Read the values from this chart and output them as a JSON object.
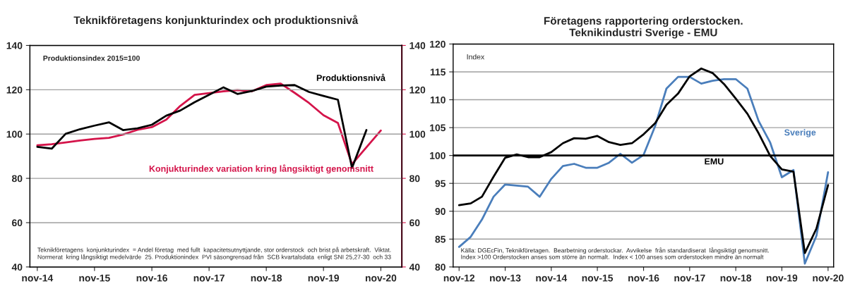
{
  "chart_data": [
    {
      "type": "line",
      "title": "Teknikföretagens konjunkturindex och produktionsnivå",
      "xlim": [
        "2014-09-15",
        "2021-03-15"
      ],
      "xticks": [
        {
          "value": "2014-11",
          "label": "nov-14"
        },
        {
          "value": "2015-11",
          "label": "nov-15"
        },
        {
          "value": "2016-11",
          "label": "nov-16"
        },
        {
          "value": "2017-11",
          "label": "nov-17"
        },
        {
          "value": "2018-11",
          "label": "nov-18"
        },
        {
          "value": "2019-11",
          "label": "nov-19"
        },
        {
          "value": "2020-11",
          "label": "nov-20"
        }
      ],
      "ylim": [
        40,
        140
      ],
      "yticks": [
        40,
        60,
        80,
        100,
        120,
        140
      ],
      "y2lim": [
        40,
        140
      ],
      "y2ticks": [
        40,
        60,
        80,
        100,
        120,
        140
      ],
      "grid": "y",
      "annotations": [
        "Produktionsindex 2015=100",
        "Teknikföretagens  konjunkturindex  = Andel företag  med fullt  kapacitetsutnyttjande, stor orderstock  och brist på arbetskraft.  Viktat.\nNormerat  kring långsiktigt medelvärde  25. Produktionindex  PVI säsongrensad från  SCB kvartalsdata  enligt SNI 25,27-30  och 33"
      ],
      "series": [
        {
          "name": "Produktionsnivå",
          "color": "#000000",
          "x": [
            "2014-11",
            "2015-02",
            "2015-05",
            "2015-08",
            "2015-11",
            "2016-02",
            "2016-05",
            "2016-08",
            "2016-11",
            "2017-02",
            "2017-05",
            "2017-08",
            "2017-11",
            "2018-02",
            "2018-05",
            "2018-08",
            "2018-11",
            "2019-02",
            "2019-05",
            "2019-08",
            "2019-11",
            "2020-02",
            "2020-05",
            "2020-08"
          ],
          "values": [
            94.2,
            93.4,
            100.1,
            102.2,
            103.8,
            105.3,
            101.8,
            102.6,
            104.2,
            108.3,
            110.6,
            114.4,
            117.7,
            121.1,
            118.1,
            119.4,
            121.4,
            121.9,
            122.1,
            119.0,
            117.2,
            115.5,
            84.7,
            101.8
          ]
        },
        {
          "name": "Konjukturindex variation kring långsiktigt genomsnitt",
          "color": "#d4144a",
          "axis": "y2",
          "x": [
            "2014-11",
            "2015-02",
            "2015-05",
            "2015-08",
            "2015-11",
            "2016-02",
            "2016-05",
            "2016-08",
            "2016-11",
            "2017-02",
            "2017-05",
            "2017-08",
            "2017-11",
            "2018-02",
            "2018-05",
            "2018-08",
            "2018-11",
            "2019-02",
            "2019-05",
            "2019-08",
            "2019-11",
            "2020-02",
            "2020-05",
            "2020-11"
          ],
          "values": [
            94.9,
            95.4,
            96.2,
            97.1,
            97.8,
            98.3,
            99.8,
            101.9,
            103.1,
            106.5,
            112.7,
            117.7,
            118.5,
            119.3,
            119.8,
            119.3,
            122.1,
            122.8,
            118.6,
            114.0,
            108.5,
            105.0,
            86.4,
            101.6
          ]
        }
      ]
    },
    {
      "type": "line",
      "title": "Företagens rapportering orderstocken.\nTeknikindustri Sverige - EMU",
      "xlim": [
        "2012-09-15",
        "2020-12-15"
      ],
      "xticks": [
        {
          "value": "2012-11",
          "label": "nov-12"
        },
        {
          "value": "2013-11",
          "label": "nov-13"
        },
        {
          "value": "2014-11",
          "label": "nov-14"
        },
        {
          "value": "2015-11",
          "label": "nov-15"
        },
        {
          "value": "2016-11",
          "label": "nov-16"
        },
        {
          "value": "2017-11",
          "label": "nov-17"
        },
        {
          "value": "2018-11",
          "label": "nov-18"
        },
        {
          "value": "2019-11",
          "label": "nov-19"
        },
        {
          "value": "2020-11",
          "label": "nov-20"
        }
      ],
      "ylim": [
        80,
        120
      ],
      "yticks": [
        80,
        85,
        90,
        95,
        100,
        105,
        110,
        115,
        120
      ],
      "grid": "y",
      "ref_lines": [
        {
          "axis": "y",
          "value": 100,
          "color": "#000000"
        }
      ],
      "annotations": [
        "Index",
        "Källa: DGEcFin, Teknikföretagen.  Bearbetning orderstockar.  Avvikelse  från standardiserat  långsiktigt genomsnitt.\nIndex >100 Orderstocken anses som större än normalt.  Index < 100 anses som orderstocken mindre än normalt"
      ],
      "series": [
        {
          "name": "Sverige",
          "color": "#4a7ebb",
          "x": [
            "2012-11",
            "2013-02",
            "2013-05",
            "2013-08",
            "2013-11",
            "2014-02",
            "2014-05",
            "2014-08",
            "2014-11",
            "2015-02",
            "2015-05",
            "2015-08",
            "2015-11",
            "2016-02",
            "2016-05",
            "2016-08",
            "2016-11",
            "2017-02",
            "2017-05",
            "2017-08",
            "2017-11",
            "2018-02",
            "2018-05",
            "2018-08",
            "2018-11",
            "2019-02",
            "2019-05",
            "2019-08",
            "2019-11",
            "2020-02",
            "2020-05",
            "2020-08",
            "2020-11"
          ],
          "values": [
            83.6,
            85.4,
            88.5,
            92.6,
            94.8,
            94.6,
            94.4,
            92.6,
            95.8,
            98.1,
            98.5,
            97.8,
            97.8,
            98.7,
            100.3,
            98.7,
            100.1,
            105.3,
            112.0,
            114.1,
            114.1,
            112.9,
            113.4,
            113.7,
            113.7,
            112.0,
            106.2,
            102.3,
            96.1,
            97.4,
            80.6,
            85.6,
            97.0
          ]
        },
        {
          "name": "EMU",
          "color": "#000000",
          "x": [
            "2012-11",
            "2013-02",
            "2013-05",
            "2013-08",
            "2013-11",
            "2014-02",
            "2014-05",
            "2014-08",
            "2014-11",
            "2015-02",
            "2015-05",
            "2015-08",
            "2015-11",
            "2016-02",
            "2016-05",
            "2016-08",
            "2016-11",
            "2017-02",
            "2017-05",
            "2017-08",
            "2017-11",
            "2018-02",
            "2018-05",
            "2018-08",
            "2018-11",
            "2019-02",
            "2019-05",
            "2019-08",
            "2019-11",
            "2020-02",
            "2020-05",
            "2020-08",
            "2020-11"
          ],
          "values": [
            91.1,
            91.4,
            92.6,
            96.2,
            99.6,
            100.2,
            99.7,
            99.7,
            100.6,
            102.2,
            103.1,
            103.0,
            103.5,
            102.4,
            101.9,
            102.2,
            103.8,
            105.8,
            109.1,
            111.1,
            114.2,
            115.6,
            114.8,
            112.8,
            110.2,
            107.5,
            104.0,
            99.9,
            97.5,
            97.1,
            82.5,
            86.9,
            94.7
          ]
        }
      ]
    }
  ]
}
